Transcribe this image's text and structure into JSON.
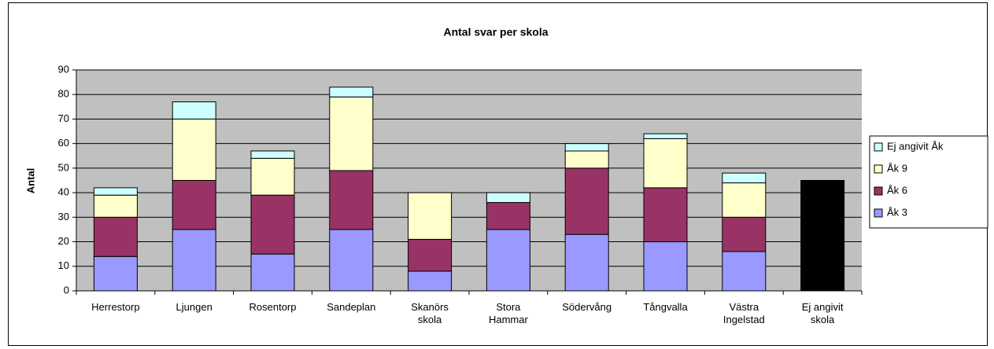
{
  "chart_data": {
    "type": "stacked_bar",
    "title": "Antal svar per skola",
    "y_label": "Antal",
    "categories": [
      "Herrestorp",
      "Ljungen",
      "Rosentorp",
      "Sandeplan",
      "Skanörs skola",
      "Stora Hammar",
      "Södervång",
      "Tångvalla",
      "Västra Ingelstad",
      "Ej angivit skola"
    ],
    "series": [
      {
        "name": "Åk 3",
        "color": "#9999ff",
        "values": [
          14,
          25,
          15,
          25,
          8,
          25,
          23,
          20,
          16,
          45
        ],
        "point_colors": {
          "9": "#000000"
        }
      },
      {
        "name": "Åk 6",
        "color": "#993366",
        "values": [
          16,
          20,
          24,
          24,
          13,
          11,
          27,
          22,
          14,
          null
        ]
      },
      {
        "name": "Åk 9",
        "color": "#ffffcc",
        "values": [
          9,
          25,
          15,
          30,
          19,
          null,
          7,
          20,
          14,
          null
        ]
      },
      {
        "name": "Ej angivit Åk",
        "color": "#ccffff",
        "values": [
          3,
          7,
          3,
          4,
          null,
          4,
          3,
          2,
          4,
          null
        ]
      }
    ],
    "ylim": [
      0,
      90
    ],
    "yticks": [
      0,
      10,
      20,
      30,
      40,
      50,
      60,
      70,
      80,
      90
    ],
    "grid": true,
    "plot_background": "#c0c0c0",
    "legend": "right"
  }
}
